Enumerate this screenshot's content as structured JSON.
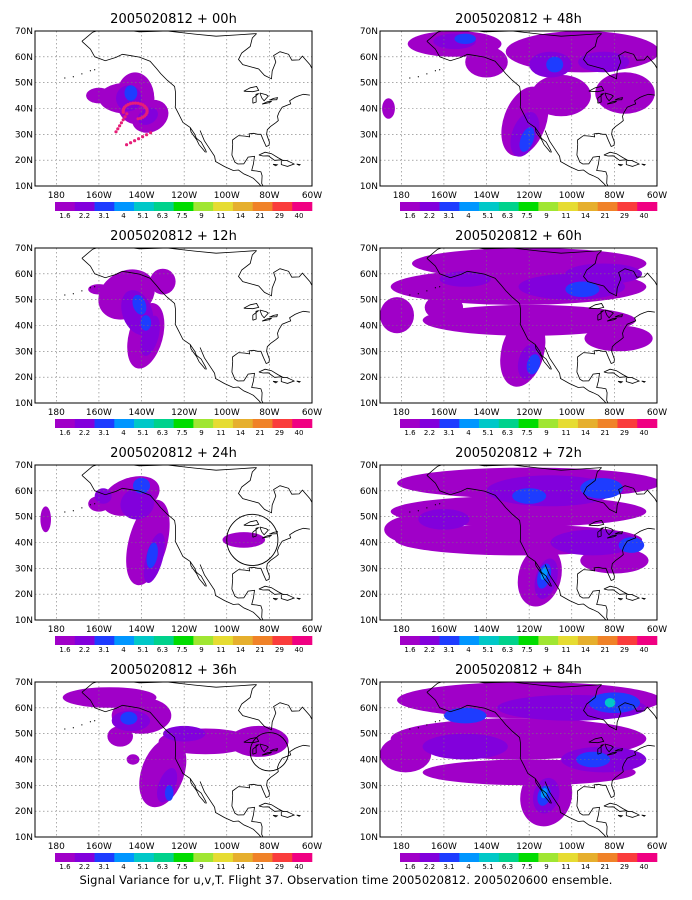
{
  "panels": [
    {
      "title": "2005020812 + 00h",
      "lead": "00h",
      "circle": false
    },
    {
      "title": "2005020812 + 48h",
      "lead": "48h",
      "circle": false
    },
    {
      "title": "2005020812 + 12h",
      "lead": "12h",
      "circle": false
    },
    {
      "title": "2005020812 + 60h",
      "lead": "60h",
      "circle": false
    },
    {
      "title": "2005020812 + 24h",
      "lead": "24h",
      "circle": true
    },
    {
      "title": "2005020812 + 72h",
      "lead": "72h",
      "circle": false
    },
    {
      "title": "2005020812 + 36h",
      "lead": "36h",
      "circle": true
    },
    {
      "title": "2005020812 + 84h",
      "lead": "84h",
      "circle": false
    }
  ],
  "axes": {
    "lon_ticks": [
      "180",
      "160W",
      "140W",
      "120W",
      "100W",
      "80W",
      "60W"
    ],
    "lat_ticks": [
      "10N",
      "20N",
      "30N",
      "40N",
      "50N",
      "60N",
      "70N"
    ],
    "lon_range": [
      -190,
      -60
    ],
    "lat_range": [
      10,
      70
    ],
    "grid": "dotted"
  },
  "colorbar": {
    "labels": [
      "1.6",
      "2.2",
      "3.1",
      "4",
      "5.1",
      "6.3",
      "7.5",
      "9",
      "11",
      "14",
      "21",
      "29",
      "40"
    ],
    "colors": [
      "#a000c8",
      "#8200dc",
      "#1e3cff",
      "#0096ff",
      "#00c8c8",
      "#00d28c",
      "#00dc00",
      "#a0e632",
      "#e6dc32",
      "#e6af2d",
      "#f08228",
      "#fa3c3c",
      "#f00082"
    ]
  },
  "field_colors": {
    "low": "#a000c8",
    "mid": "#8200dc",
    "high": "#1e3cff",
    "peak": "#0096ff",
    "top": "#00c8c8"
  },
  "track_color": "#e61e78",
  "caption": "Signal Variance for u,v,T. Flight 37. Observation time 2005020812. 2005020600 ensemble."
}
